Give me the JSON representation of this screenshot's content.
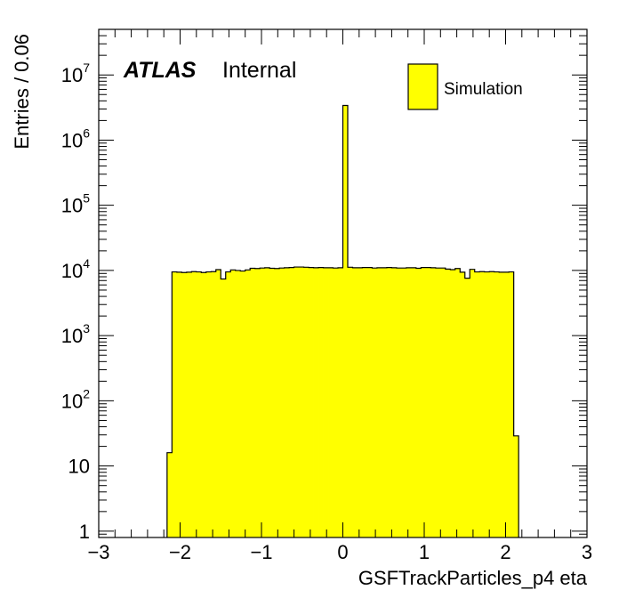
{
  "chart_data": {
    "type": "bar",
    "xlabel": "GSFTrackParticles_p4 eta",
    "ylabel": "Entries / 0.06",
    "experiment": "ATLAS",
    "status": "Internal",
    "legend": {
      "position": "top-right",
      "entries": [
        {
          "label": "Simulation",
          "color": "#ffff00"
        }
      ]
    },
    "xlim": [
      -3,
      3
    ],
    "ylim": [
      0.8,
      50000000
    ],
    "yscale": "log",
    "bin_width": 0.06,
    "grid": false,
    "fill_color": "#ffff00",
    "x_ticks": [
      "−3",
      "−2",
      "−1",
      "0",
      "1",
      "2",
      "3"
    ],
    "y_ticks": [
      {
        "base": "1",
        "exp": ""
      },
      {
        "base": "10",
        "exp": ""
      },
      {
        "base": "10",
        "exp": "2"
      },
      {
        "base": "10",
        "exp": "3"
      },
      {
        "base": "10",
        "exp": "4"
      },
      {
        "base": "10",
        "exp": "5"
      },
      {
        "base": "10",
        "exp": "6"
      },
      {
        "base": "10",
        "exp": "7"
      }
    ],
    "bins": [
      {
        "x": -2.16,
        "value": 16
      },
      {
        "x": -2.1,
        "value": 9500
      },
      {
        "x": -2.04,
        "value": 9400
      },
      {
        "x": -1.98,
        "value": 9300
      },
      {
        "x": -1.92,
        "value": 9400
      },
      {
        "x": -1.86,
        "value": 9600
      },
      {
        "x": -1.8,
        "value": 9500
      },
      {
        "x": -1.74,
        "value": 9300
      },
      {
        "x": -1.68,
        "value": 9500
      },
      {
        "x": -1.62,
        "value": 9600
      },
      {
        "x": -1.56,
        "value": 10300
      },
      {
        "x": -1.5,
        "value": 7400
      },
      {
        "x": -1.44,
        "value": 9500
      },
      {
        "x": -1.38,
        "value": 10200
      },
      {
        "x": -1.32,
        "value": 10000
      },
      {
        "x": -1.26,
        "value": 9800
      },
      {
        "x": -1.2,
        "value": 10200
      },
      {
        "x": -1.14,
        "value": 10800
      },
      {
        "x": -1.08,
        "value": 10700
      },
      {
        "x": -1.02,
        "value": 10900
      },
      {
        "x": -0.96,
        "value": 11000
      },
      {
        "x": -0.9,
        "value": 10800
      },
      {
        "x": -0.84,
        "value": 10700
      },
      {
        "x": -0.78,
        "value": 10900
      },
      {
        "x": -0.72,
        "value": 11000
      },
      {
        "x": -0.66,
        "value": 11100
      },
      {
        "x": -0.6,
        "value": 11300
      },
      {
        "x": -0.54,
        "value": 11300
      },
      {
        "x": -0.48,
        "value": 11200
      },
      {
        "x": -0.42,
        "value": 11100
      },
      {
        "x": -0.36,
        "value": 11000
      },
      {
        "x": -0.3,
        "value": 11100
      },
      {
        "x": -0.24,
        "value": 11000
      },
      {
        "x": -0.18,
        "value": 11000
      },
      {
        "x": -0.12,
        "value": 10900
      },
      {
        "x": -0.06,
        "value": 11000
      },
      {
        "x": 0.0,
        "value": 3400000
      },
      {
        "x": 0.06,
        "value": 11200
      },
      {
        "x": 0.12,
        "value": 11000
      },
      {
        "x": 0.18,
        "value": 11000
      },
      {
        "x": 0.24,
        "value": 11100
      },
      {
        "x": 0.3,
        "value": 11100
      },
      {
        "x": 0.36,
        "value": 10900
      },
      {
        "x": 0.42,
        "value": 11000
      },
      {
        "x": 0.48,
        "value": 11000
      },
      {
        "x": 0.54,
        "value": 11100
      },
      {
        "x": 0.6,
        "value": 11000
      },
      {
        "x": 0.66,
        "value": 10900
      },
      {
        "x": 0.72,
        "value": 10900
      },
      {
        "x": 0.78,
        "value": 11000
      },
      {
        "x": 0.84,
        "value": 11000
      },
      {
        "x": 0.9,
        "value": 10800
      },
      {
        "x": 0.96,
        "value": 11100
      },
      {
        "x": 1.02,
        "value": 11100
      },
      {
        "x": 1.08,
        "value": 11000
      },
      {
        "x": 1.14,
        "value": 10900
      },
      {
        "x": 1.2,
        "value": 10900
      },
      {
        "x": 1.26,
        "value": 10500
      },
      {
        "x": 1.32,
        "value": 10300
      },
      {
        "x": 1.38,
        "value": 10700
      },
      {
        "x": 1.44,
        "value": 9400
      },
      {
        "x": 1.5,
        "value": 7600
      },
      {
        "x": 1.56,
        "value": 10400
      },
      {
        "x": 1.62,
        "value": 9500
      },
      {
        "x": 1.68,
        "value": 9600
      },
      {
        "x": 1.74,
        "value": 9500
      },
      {
        "x": 1.8,
        "value": 9600
      },
      {
        "x": 1.86,
        "value": 9500
      },
      {
        "x": 1.92,
        "value": 9400
      },
      {
        "x": 1.98,
        "value": 9400
      },
      {
        "x": 2.04,
        "value": 9500
      },
      {
        "x": 2.1,
        "value": 29
      }
    ]
  }
}
